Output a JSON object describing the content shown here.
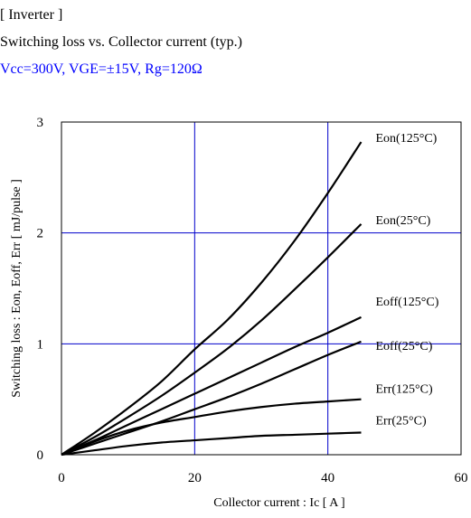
{
  "header": {
    "section": "[ Inverter ]",
    "title": "Switching loss  vs.  Collector current  (typ.)",
    "conditions": "Vcc=300V, VGE=±15V, Rg=120Ω"
  },
  "colors": {
    "conditions_text": "#0000ff",
    "gridline": "#0000cc",
    "curve": "#000000"
  },
  "chart_data": {
    "type": "line",
    "title": "Switching loss  vs.  Collector current  (typ.)",
    "subtitle": "Vcc=300V, VGE=±15V, Rg=120Ω",
    "xlabel": "Collector current : Ic [ A ]",
    "ylabel": "Switching loss : Eon, Eoff, Err [ mJ/pulse ]",
    "xlim": [
      0,
      60
    ],
    "ylim": [
      0,
      3
    ],
    "xticks": [
      "0",
      "20",
      "40",
      "60"
    ],
    "yticks": [
      "0",
      "1",
      "2",
      "3"
    ],
    "grid": true,
    "series": [
      {
        "name": "Eon(125°C)",
        "x": [
          0,
          5,
          10,
          15,
          20,
          25,
          30,
          35,
          40,
          45
        ],
        "y": [
          0,
          0.2,
          0.42,
          0.66,
          0.95,
          1.22,
          1.55,
          1.93,
          2.36,
          2.82
        ]
      },
      {
        "name": "Eon(25°C)",
        "x": [
          0,
          5,
          10,
          15,
          20,
          25,
          30,
          35,
          40,
          45
        ],
        "y": [
          0,
          0.16,
          0.34,
          0.53,
          0.74,
          0.96,
          1.21,
          1.49,
          1.78,
          2.08
        ]
      },
      {
        "name": "Eoff(125°C)",
        "x": [
          0,
          5,
          10,
          15,
          20,
          25,
          30,
          35,
          40,
          45
        ],
        "y": [
          0,
          0.13,
          0.27,
          0.41,
          0.55,
          0.69,
          0.83,
          0.97,
          1.1,
          1.24
        ]
      },
      {
        "name": "Eoff(25°C)",
        "x": [
          0,
          5,
          10,
          15,
          20,
          25,
          30,
          35,
          40,
          45
        ],
        "y": [
          0,
          0.1,
          0.2,
          0.3,
          0.41,
          0.52,
          0.64,
          0.77,
          0.9,
          1.02
        ]
      },
      {
        "name": "Err(125°C)",
        "x": [
          0,
          5,
          10,
          15,
          20,
          25,
          30,
          35,
          40,
          45
        ],
        "y": [
          0,
          0.12,
          0.22,
          0.29,
          0.34,
          0.39,
          0.43,
          0.46,
          0.48,
          0.5
        ]
      },
      {
        "name": "Err(25°C)",
        "x": [
          0,
          5,
          10,
          15,
          20,
          25,
          30,
          35,
          40,
          45
        ],
        "y": [
          0,
          0.04,
          0.08,
          0.11,
          0.13,
          0.15,
          0.17,
          0.18,
          0.19,
          0.2
        ]
      }
    ]
  }
}
